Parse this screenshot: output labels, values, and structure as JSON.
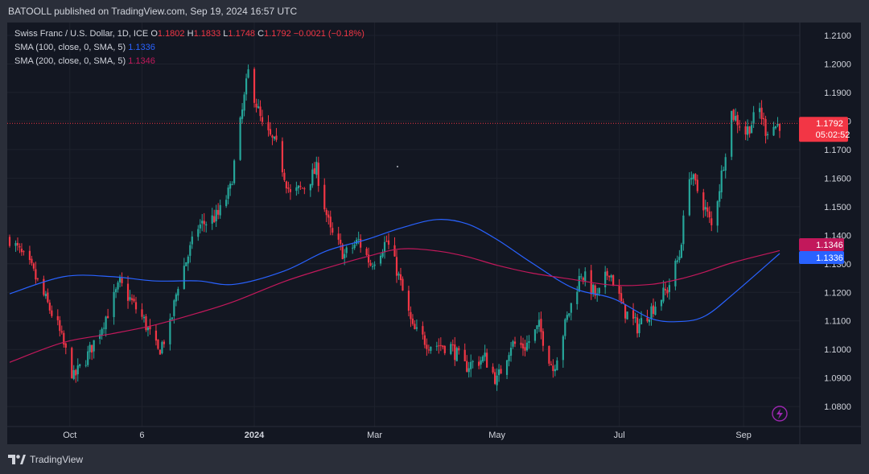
{
  "header": {
    "published": "BATOOLL published on TradingView.com, Sep 19, 2024 16:57 UTC"
  },
  "legend": {
    "symbol": "Swiss Franc / U.S. Dollar, 1D, ICE",
    "o_label": "O",
    "o": "1.1802",
    "h_label": "H",
    "h": "1.1833",
    "l_label": "L",
    "l": "1.1748",
    "c_label": "C",
    "c": "1.1792",
    "change": "−0.0021 (−0.18%)",
    "sma100_label": "SMA (100, close, 0, SMA, 5)",
    "sma100_value": "1.1336",
    "sma200_label": "SMA (200, close, 0, SMA, 5)",
    "sma200_value": "1.1346"
  },
  "footer": {
    "brand": "TradingView"
  },
  "colors": {
    "up": "#26a69a",
    "down": "#f23645",
    "sma100": "#2962ff",
    "sma200": "#c2185b",
    "bg": "#131722",
    "grid": "#1e222d"
  },
  "chart_data": {
    "type": "line",
    "chart_kind": "candlestick",
    "ylim": [
      1.073,
      1.2145
    ],
    "y_ticks": [
      "1.2100",
      "1.2000",
      "1.1900",
      "1.1800",
      "1.1700",
      "1.1600",
      "1.1500",
      "1.1400",
      "1.1300",
      "1.1200",
      "1.1100",
      "1.1000",
      "1.0900",
      "1.0800"
    ],
    "x_ticks": [
      "Oct",
      "6",
      "2024",
      "Mar",
      "May",
      "Jul",
      "Sep"
    ],
    "last_price": {
      "value": 1.1792,
      "label": "1.1792",
      "countdown": "05:02:52"
    },
    "price_tags": [
      {
        "series": "SMA (200)",
        "value": 1.1346,
        "label": "1.1346",
        "color": "#c2185b"
      },
      {
        "series": "SMA (100)",
        "value": 1.1336,
        "label": "1.1336",
        "color": "#2962ff"
      }
    ],
    "price_path": [
      [
        "2023-09-01",
        1.139
      ],
      [
        "2023-09-12",
        1.128
      ],
      [
        "2023-09-25",
        1.108
      ],
      [
        "2023-10-03",
        1.09
      ],
      [
        "2023-10-10",
        1.098
      ],
      [
        "2023-10-20",
        1.113
      ],
      [
        "2023-10-26",
        1.123
      ],
      [
        "2023-11-07",
        1.11
      ],
      [
        "2023-11-14",
        1.099
      ],
      [
        "2023-11-20",
        1.108
      ],
      [
        "2023-11-24",
        1.123
      ],
      [
        "2023-12-04",
        1.143
      ],
      [
        "2023-12-14",
        1.147
      ],
      [
        "2023-12-20",
        1.156
      ],
      [
        "2023-12-29",
        1.197
      ],
      [
        "2024-01-05",
        1.178
      ],
      [
        "2024-01-12",
        1.171
      ],
      [
        "2024-01-19",
        1.154
      ],
      [
        "2024-01-26",
        1.157
      ],
      [
        "2024-02-01",
        1.163
      ],
      [
        "2024-02-08",
        1.141
      ],
      [
        "2024-02-15",
        1.133
      ],
      [
        "2024-02-22",
        1.138
      ],
      [
        "2024-02-28",
        1.13
      ],
      [
        "2024-03-07",
        1.138
      ],
      [
        "2024-03-12",
        1.128
      ],
      [
        "2024-03-20",
        1.107
      ],
      [
        "2024-03-28",
        1.102
      ],
      [
        "2024-04-08",
        1.101
      ],
      [
        "2024-04-15",
        1.094
      ],
      [
        "2024-04-25",
        1.097
      ],
      [
        "2024-05-01",
        1.089
      ],
      [
        "2024-05-08",
        1.102
      ],
      [
        "2024-05-15",
        1.101
      ],
      [
        "2024-05-22",
        1.108
      ],
      [
        "2024-05-29",
        1.093
      ],
      [
        "2024-06-05",
        1.111
      ],
      [
        "2024-06-12",
        1.127
      ],
      [
        "2024-06-20",
        1.118
      ],
      [
        "2024-06-26",
        1.128
      ],
      [
        "2024-07-03",
        1.114
      ],
      [
        "2024-07-10",
        1.108
      ],
      [
        "2024-07-18",
        1.115
      ],
      [
        "2024-07-25",
        1.121
      ],
      [
        "2024-07-31",
        1.133
      ],
      [
        "2024-08-05",
        1.162
      ],
      [
        "2024-08-12",
        1.151
      ],
      [
        "2024-08-16",
        1.143
      ],
      [
        "2024-08-20",
        1.157
      ],
      [
        "2024-08-26",
        1.183
      ],
      [
        "2024-09-02",
        1.176
      ],
      [
        "2024-09-09",
        1.184
      ],
      [
        "2024-09-12",
        1.177
      ],
      [
        "2024-09-19",
        1.179
      ]
    ],
    "series": [
      {
        "name": "SMA (100, close, 0, SMA, 5)",
        "color": "#2962ff",
        "x": [
          "2023-09-01",
          "2023-09-28",
          "2023-10-22",
          "2023-11-12",
          "2023-12-04",
          "2023-12-22",
          "2024-01-16",
          "2024-02-06",
          "2024-02-26",
          "2024-03-14",
          "2024-04-01",
          "2024-04-16",
          "2024-05-01",
          "2024-05-18",
          "2024-06-08",
          "2024-06-28",
          "2024-07-17",
          "2024-08-01",
          "2024-08-13",
          "2024-08-27",
          "2024-09-19"
        ],
        "values": [
          1.1195,
          1.1255,
          1.1255,
          1.124,
          1.124,
          1.1228,
          1.1275,
          1.1345,
          1.1385,
          1.1425,
          1.1455,
          1.144,
          1.1385,
          1.1305,
          1.1215,
          1.1178,
          1.1108,
          1.1098,
          1.1118,
          1.1195,
          1.1336
        ]
      },
      {
        "name": "SMA (200, close, 0, SMA, 5)",
        "color": "#c2185b",
        "x": [
          "2023-09-01",
          "2023-09-28",
          "2023-10-22",
          "2023-11-12",
          "2023-12-04",
          "2023-12-22",
          "2024-01-16",
          "2024-02-06",
          "2024-02-26",
          "2024-03-14",
          "2024-04-01",
          "2024-04-16",
          "2024-05-01",
          "2024-05-18",
          "2024-06-08",
          "2024-06-28",
          "2024-07-17",
          "2024-08-01",
          "2024-08-13",
          "2024-08-27",
          "2024-09-19"
        ],
        "values": [
          1.0955,
          1.1025,
          1.1055,
          1.1085,
          1.1128,
          1.1168,
          1.1238,
          1.1285,
          1.1325,
          1.1352,
          1.1345,
          1.1325,
          1.1295,
          1.1268,
          1.1245,
          1.1225,
          1.1228,
          1.1248,
          1.1272,
          1.1305,
          1.1346
        ]
      }
    ]
  }
}
